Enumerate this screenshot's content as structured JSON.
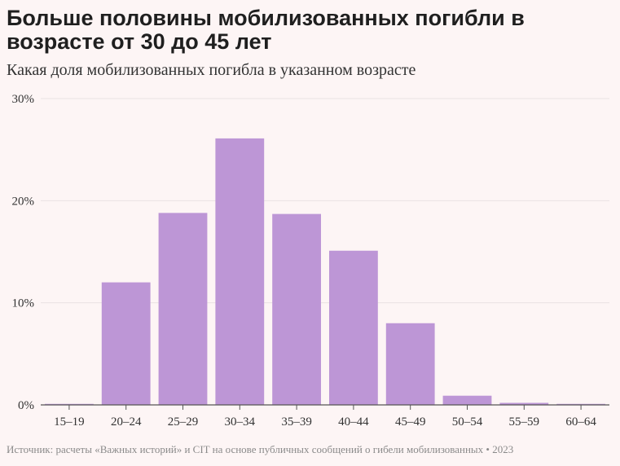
{
  "header": {
    "title": "Больше половины мобилизованных погибли в возрасте от 30 до 45 лет",
    "subtitle": "Какая доля мобилизованных погибла в указанном возрасте"
  },
  "footer": {
    "source": "Источник: расчеты «Важных историй» и CIT на основе публичных сообщений о гибели мобилизованных • 2023"
  },
  "colors": {
    "bar": "#bd96d6",
    "grid": "#e9e2e4",
    "axis": "#555555"
  },
  "chart_data": {
    "type": "bar",
    "categories": [
      "15–19",
      "20–24",
      "25–29",
      "30–34",
      "35–39",
      "40–44",
      "45–49",
      "50–54",
      "55–59",
      "60–64"
    ],
    "values": [
      0.1,
      12.0,
      18.8,
      26.1,
      18.7,
      15.1,
      8.0,
      0.9,
      0.2,
      0.1
    ],
    "yticks": [
      0,
      10,
      20,
      30
    ],
    "ytick_labels": [
      "0%",
      "10%",
      "20%",
      "30%"
    ],
    "ylim": [
      0,
      30
    ],
    "title": "Больше половины мобилизованных погибли в возрасте от 30 до 45 лет",
    "subtitle": "Какая доля мобилизованных погибла в указанном возрасте",
    "xlabel": "",
    "ylabel": "",
    "grid": true
  }
}
